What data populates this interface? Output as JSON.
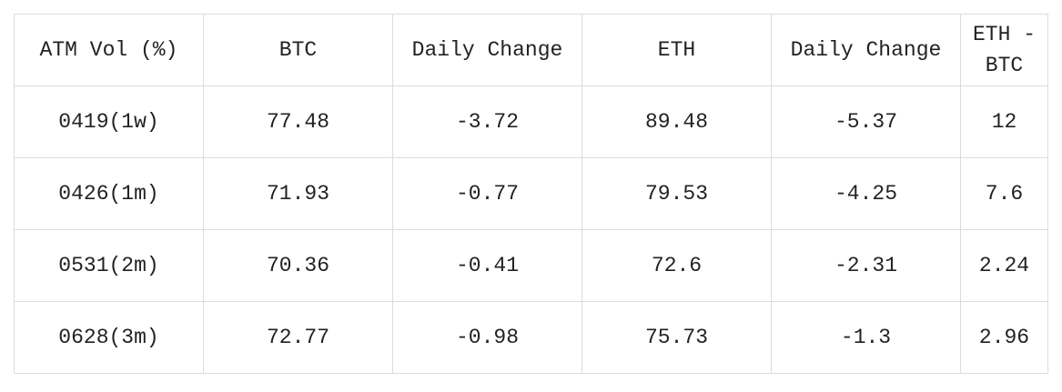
{
  "table": {
    "header": [
      "ATM Vol (%)",
      "BTC",
      "Daily Change",
      "ETH",
      "Daily Change",
      "ETH - BTC"
    ],
    "rows": [
      [
        "0419(1w)",
        "77.48",
        "-3.72",
        "89.48",
        "-5.37",
        "12"
      ],
      [
        "0426(1m)",
        "71.93",
        "-0.77",
        "79.53",
        "-4.25",
        "7.6"
      ],
      [
        "0531(2m)",
        "70.36",
        "-0.41",
        "72.6",
        "-2.31",
        "2.24"
      ],
      [
        "0628(3m)",
        "72.77",
        "-0.98",
        "75.73",
        "-1.3",
        "2.96"
      ]
    ]
  }
}
